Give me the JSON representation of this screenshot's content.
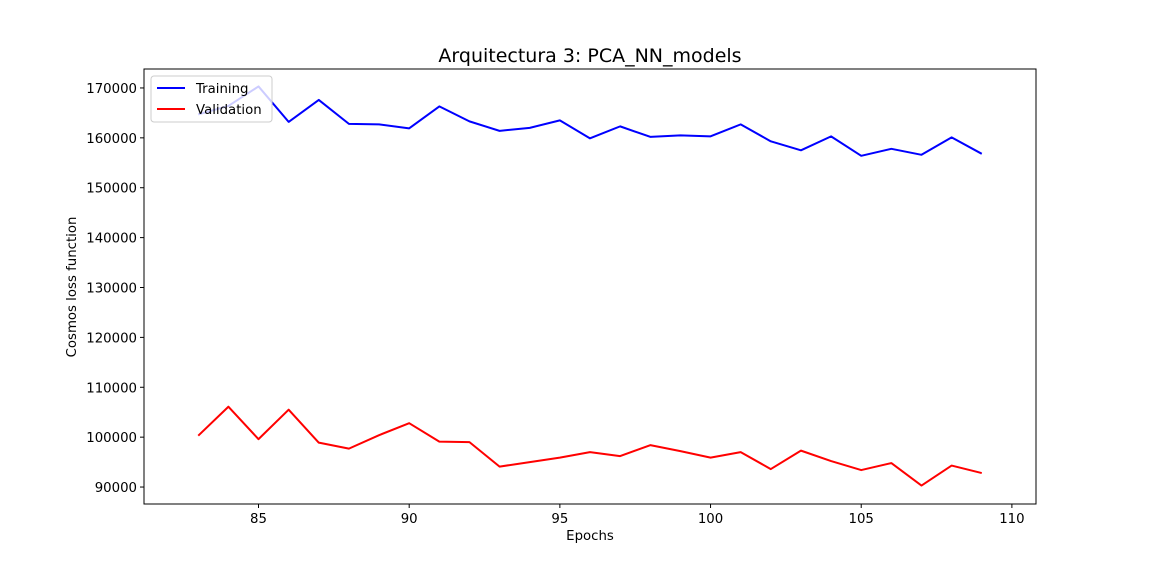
{
  "chart_data": {
    "type": "line",
    "title": "Arquitectura 3: PCA_NN_models",
    "xlabel": "Epochs",
    "ylabel": "Cosmos loss function",
    "xlim": [
      81.2,
      110.8
    ],
    "ylim": [
      86600,
      173800
    ],
    "xticks": [
      85,
      90,
      95,
      100,
      105,
      110
    ],
    "yticks": [
      90000,
      100000,
      110000,
      120000,
      130000,
      140000,
      150000,
      160000,
      170000
    ],
    "legend_position": "top-left",
    "x": [
      83,
      84,
      85,
      86,
      87,
      88,
      89,
      90,
      91,
      92,
      93,
      94,
      95,
      96,
      97,
      98,
      99,
      100,
      101,
      102,
      103,
      104,
      105,
      106,
      107,
      108,
      109
    ],
    "series": [
      {
        "name": "Training",
        "color": "#0000ff",
        "values": [
          164700,
          166400,
          170300,
          163200,
          167600,
          162800,
          162700,
          161900,
          166300,
          163300,
          161400,
          162000,
          163500,
          159900,
          162300,
          160200,
          160500,
          160300,
          162700,
          159300,
          157500,
          160300,
          156400,
          157800,
          156600,
          160100,
          156800
        ]
      },
      {
        "name": "Validation",
        "color": "#ff0000",
        "values": [
          100300,
          106100,
          99600,
          105500,
          98900,
          97700,
          100400,
          102800,
          99100,
          99000,
          94100,
          95000,
          95900,
          97000,
          96200,
          98400,
          97200,
          95900,
          97000,
          93600,
          97300,
          95200,
          93400,
          94800,
          90300,
          94300,
          92800
        ]
      }
    ]
  }
}
